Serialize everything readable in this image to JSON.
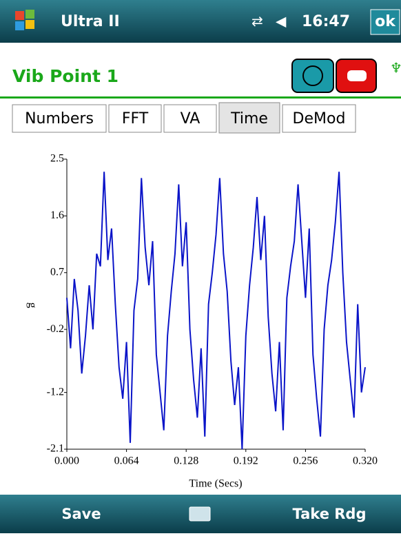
{
  "status_bar": {
    "app": "Ultra II",
    "time": "16:47",
    "ok": "ok"
  },
  "header": {
    "title": "Vib Point 1"
  },
  "tabs": [
    "Numbers",
    "FFT",
    "VA",
    "Time",
    "DeMod"
  ],
  "active_tab": 3,
  "chart_data": {
    "type": "line",
    "xlabel": "Time (Secs)",
    "ylabel": "g",
    "xlim": [
      0,
      0.32
    ],
    "ylim": [
      -2.1,
      2.5
    ],
    "xticks": [
      {
        "value": 0,
        "label": "0.000"
      },
      0.064,
      0.128,
      0.192,
      0.256,
      {
        "value": 0.32,
        "label": "0.320"
      }
    ],
    "yticks": [
      2.5,
      1.6,
      0.7,
      -0.2,
      -1.2,
      -2.1
    ],
    "x": [
      0,
      0.004,
      0.008,
      0.012,
      0.016,
      0.02,
      0.024,
      0.028,
      0.032,
      0.036,
      0.04,
      0.044,
      0.048,
      0.052,
      0.056,
      0.06,
      0.064,
      0.068,
      0.072,
      0.076,
      0.08,
      0.084,
      0.088,
      0.092,
      0.096,
      0.1,
      0.104,
      0.108,
      0.112,
      0.116,
      0.12,
      0.124,
      0.128,
      0.132,
      0.136,
      0.14,
      0.144,
      0.148,
      0.152,
      0.156,
      0.16,
      0.164,
      0.168,
      0.172,
      0.176,
      0.18,
      0.184,
      0.188,
      0.192,
      0.196,
      0.2,
      0.204,
      0.208,
      0.212,
      0.216,
      0.22,
      0.224,
      0.228,
      0.232,
      0.236,
      0.24,
      0.244,
      0.248,
      0.252,
      0.256,
      0.26,
      0.264,
      0.268,
      0.272,
      0.276,
      0.28,
      0.284,
      0.288,
      0.292,
      0.296,
      0.3,
      0.304,
      0.308,
      0.312,
      0.316,
      0.32
    ],
    "series": [
      {
        "color": "#0a14c8",
        "values": [
          0.3,
          -0.5,
          0.6,
          0.1,
          -0.9,
          -0.3,
          0.5,
          -0.2,
          1.0,
          0.8,
          2.3,
          0.9,
          1.4,
          0.2,
          -0.8,
          -1.3,
          -0.4,
          -2.0,
          0.1,
          0.6,
          2.2,
          1.1,
          0.5,
          1.2,
          -0.6,
          -1.2,
          -1.8,
          -0.3,
          0.4,
          1.0,
          2.1,
          0.8,
          1.5,
          -0.2,
          -1.0,
          -1.6,
          -0.5,
          -1.9,
          0.2,
          0.7,
          1.3,
          2.2,
          1.0,
          0.4,
          -0.7,
          -1.4,
          -0.8,
          -2.1,
          -0.3,
          0.5,
          1.1,
          1.9,
          0.9,
          1.6,
          0.0,
          -0.9,
          -1.5,
          -0.4,
          -1.8,
          0.3,
          0.8,
          1.2,
          2.1,
          1.2,
          0.3,
          1.4,
          -0.6,
          -1.3,
          -1.9,
          -0.2,
          0.5,
          0.9,
          1.5,
          2.3,
          0.7,
          -0.4,
          -1.0,
          -1.6,
          0.2,
          -1.2,
          -0.8
        ]
      }
    ]
  },
  "footer": {
    "left": "Save",
    "right": "Take Rdg"
  }
}
